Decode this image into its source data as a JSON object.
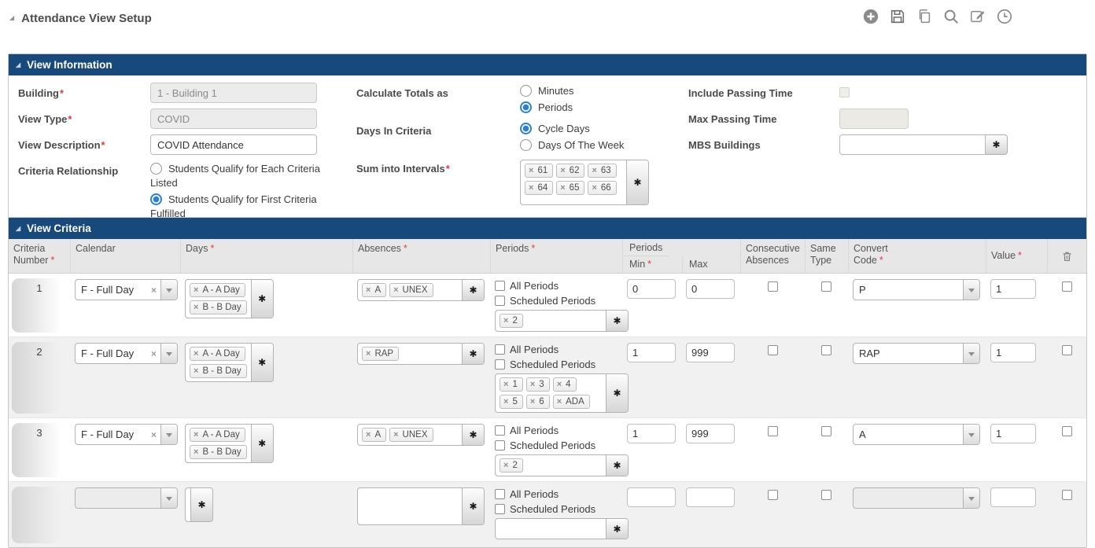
{
  "colors": {
    "accent_header": "#17497C",
    "required_mark": "#E8374A",
    "radio_selected": "#2A7FD8",
    "tag_border": "#BDBDBD"
  },
  "page": {
    "title": "Attendance View Setup"
  },
  "toolbar": {
    "icons": [
      "add",
      "save",
      "copy",
      "search",
      "edit",
      "history"
    ]
  },
  "view_information": {
    "title": "View Information",
    "building": {
      "label": "Building",
      "required": true,
      "value": "1 - Building 1",
      "disabled": true
    },
    "view_type": {
      "label": "View Type",
      "required": true,
      "value": "COVID",
      "disabled": true
    },
    "view_description": {
      "label": "View Description",
      "required": true,
      "value": "COVID Attendance"
    },
    "criteria_relationship": {
      "label": "Criteria Relationship",
      "options": [
        "Students Qualify for Each Criteria Listed",
        "Students Qualify for First Criteria Fulfilled"
      ],
      "selected": 1
    },
    "calculate_totals_as": {
      "label": "Calculate Totals as",
      "options": [
        "Minutes",
        "Periods"
      ],
      "selected": 1
    },
    "days_in_criteria": {
      "label": "Days In Criteria",
      "options": [
        "Cycle Days",
        "Days Of The Week"
      ],
      "selected": 0
    },
    "sum_into_intervals": {
      "label": "Sum into Intervals",
      "required": true,
      "tags": [
        "61",
        "62",
        "63",
        "64",
        "65",
        "66"
      ]
    },
    "include_passing_time": {
      "label": "Include Passing Time",
      "checked": false,
      "disabled": true
    },
    "max_passing_time": {
      "label": "Max Passing Time",
      "value": "",
      "disabled": true
    },
    "mbs_buildings": {
      "label": "MBS Buildings",
      "value": ""
    }
  },
  "view_criteria": {
    "title": "View Criteria",
    "headers": {
      "criteria_number": {
        "label": "Criteria Number",
        "required": true
      },
      "calendar": {
        "label": "Calendar"
      },
      "days": {
        "label": "Days",
        "required": true
      },
      "absences": {
        "label": "Absences",
        "required": true
      },
      "periods": {
        "label": "Periods",
        "required": true
      },
      "periods_group": {
        "label": "Periods"
      },
      "min": {
        "label": "Min",
        "required": true
      },
      "max": {
        "label": "Max"
      },
      "consecutive_absences": {
        "label": "Consecutive Absences"
      },
      "same_type": {
        "label": "Same Type"
      },
      "convert_code": {
        "label": "Convert Code",
        "required": true
      },
      "value": {
        "label": "Value",
        "required": true
      }
    },
    "row_labels": {
      "all_periods": "All Periods",
      "scheduled_periods": "Scheduled Periods"
    },
    "rows": [
      {
        "number": "1",
        "calendar": "F - Full Day",
        "days": [
          "A - A Day",
          "B - B Day"
        ],
        "absences": [
          "A",
          "UNEX"
        ],
        "all_periods": false,
        "scheduled_periods": false,
        "periods": [
          "2"
        ],
        "min": "0",
        "max": "0",
        "consecutive_absences": false,
        "same_type": false,
        "convert_code": "P",
        "value": "1",
        "marked_for_delete": false
      },
      {
        "number": "2",
        "calendar": "F - Full Day",
        "days": [
          "A - A Day",
          "B - B Day"
        ],
        "absences": [
          "RAP"
        ],
        "all_periods": false,
        "scheduled_periods": false,
        "periods": [
          "1",
          "3",
          "4",
          "5",
          "6",
          "ADA"
        ],
        "min": "1",
        "max": "999",
        "consecutive_absences": false,
        "same_type": false,
        "convert_code": "RAP",
        "value": "1",
        "marked_for_delete": false
      },
      {
        "number": "3",
        "calendar": "F - Full Day",
        "days": [
          "A - A Day",
          "B - B Day"
        ],
        "absences": [
          "A",
          "UNEX"
        ],
        "all_periods": false,
        "scheduled_periods": false,
        "periods": [
          "2"
        ],
        "min": "1",
        "max": "999",
        "consecutive_absences": false,
        "same_type": false,
        "convert_code": "A",
        "value": "1",
        "marked_for_delete": false
      },
      {
        "number": "",
        "calendar": "",
        "days": [],
        "absences": [],
        "all_periods": false,
        "scheduled_periods": false,
        "periods": [],
        "min": "",
        "max": "",
        "consecutive_absences": false,
        "same_type": false,
        "convert_code": "",
        "value": "",
        "marked_for_delete": false
      }
    ]
  }
}
